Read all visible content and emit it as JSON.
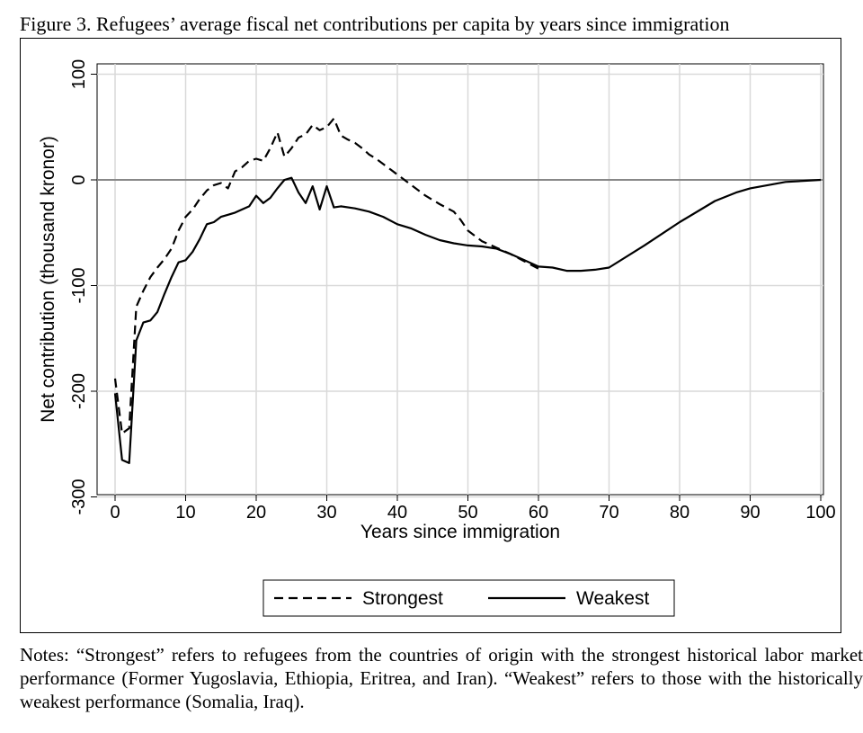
{
  "figure": {
    "caption": "Figure 3. Refugees’ average fiscal net contributions per capita by years since immigration",
    "notes": "Notes: “Strongest” refers to refugees from the countries of origin with the strongest historical labor market performance (Former Yugoslavia, Ethiopia, Eritrea, and Iran). “Weakest” refers to those with the historically weakest performance (Somalia, Iraq)."
  },
  "chart_data": {
    "type": "line",
    "xlabel": "Years since immigration",
    "ylabel": "Net contribution (thousand kronor)",
    "xlim": [
      0,
      100
    ],
    "ylim": [
      -300,
      100
    ],
    "xticks": [
      0,
      10,
      20,
      30,
      40,
      50,
      60,
      70,
      80,
      90,
      100
    ],
    "yticks": [
      -300,
      -200,
      -100,
      0,
      100
    ],
    "grid": true,
    "legend_position": "bottom",
    "reference_line_y": 0,
    "colors": {
      "line": "#000000",
      "grid": "#d9d9d9",
      "zero_line": "#888888"
    },
    "series": [
      {
        "name": "Strongest",
        "style": "dashed",
        "points": [
          [
            0,
            -188
          ],
          [
            1,
            -240
          ],
          [
            2,
            -235
          ],
          [
            3,
            -120
          ],
          [
            4,
            -105
          ],
          [
            5,
            -92
          ],
          [
            6,
            -83
          ],
          [
            7,
            -75
          ],
          [
            8,
            -65
          ],
          [
            9,
            -48
          ],
          [
            10,
            -35
          ],
          [
            11,
            -28
          ],
          [
            12,
            -18
          ],
          [
            13,
            -10
          ],
          [
            14,
            -5
          ],
          [
            15,
            -3
          ],
          [
            16,
            -8
          ],
          [
            17,
            8
          ],
          [
            18,
            12
          ],
          [
            19,
            18
          ],
          [
            20,
            20
          ],
          [
            21,
            18
          ],
          [
            22,
            30
          ],
          [
            23,
            45
          ],
          [
            24,
            22
          ],
          [
            25,
            30
          ],
          [
            26,
            40
          ],
          [
            27,
            43
          ],
          [
            28,
            52
          ],
          [
            29,
            47
          ],
          [
            30,
            50
          ],
          [
            31,
            58
          ],
          [
            32,
            42
          ],
          [
            33,
            38
          ],
          [
            34,
            35
          ],
          [
            35,
            30
          ],
          [
            36,
            24
          ],
          [
            37,
            20
          ],
          [
            38,
            15
          ],
          [
            39,
            10
          ],
          [
            40,
            5
          ],
          [
            42,
            -5
          ],
          [
            44,
            -15
          ],
          [
            46,
            -23
          ],
          [
            48,
            -30
          ],
          [
            49,
            -38
          ],
          [
            50,
            -48
          ],
          [
            52,
            -58
          ],
          [
            54,
            -64
          ],
          [
            56,
            -70
          ],
          [
            58,
            -77
          ],
          [
            60,
            -84
          ]
        ]
      },
      {
        "name": "Weakest",
        "style": "solid",
        "points": [
          [
            0,
            -202
          ],
          [
            1,
            -265
          ],
          [
            2,
            -268
          ],
          [
            3,
            -152
          ],
          [
            4,
            -135
          ],
          [
            5,
            -133
          ],
          [
            6,
            -125
          ],
          [
            7,
            -108
          ],
          [
            8,
            -92
          ],
          [
            9,
            -78
          ],
          [
            10,
            -76
          ],
          [
            11,
            -68
          ],
          [
            12,
            -56
          ],
          [
            13,
            -42
          ],
          [
            14,
            -40
          ],
          [
            15,
            -35
          ],
          [
            16,
            -33
          ],
          [
            17,
            -31
          ],
          [
            18,
            -28
          ],
          [
            19,
            -25
          ],
          [
            20,
            -15
          ],
          [
            21,
            -22
          ],
          [
            22,
            -17
          ],
          [
            23,
            -8
          ],
          [
            24,
            0
          ],
          [
            25,
            2
          ],
          [
            26,
            -12
          ],
          [
            27,
            -22
          ],
          [
            28,
            -6
          ],
          [
            29,
            -28
          ],
          [
            30,
            -6
          ],
          [
            31,
            -26
          ],
          [
            32,
            -25
          ],
          [
            34,
            -27
          ],
          [
            36,
            -30
          ],
          [
            38,
            -35
          ],
          [
            40,
            -42
          ],
          [
            42,
            -46
          ],
          [
            44,
            -52
          ],
          [
            46,
            -57
          ],
          [
            48,
            -60
          ],
          [
            50,
            -62
          ],
          [
            52,
            -63
          ],
          [
            54,
            -65
          ],
          [
            56,
            -70
          ],
          [
            58,
            -76
          ],
          [
            60,
            -82
          ],
          [
            62,
            -83
          ],
          [
            64,
            -86
          ],
          [
            66,
            -86
          ],
          [
            68,
            -85
          ],
          [
            70,
            -83
          ],
          [
            75,
            -62
          ],
          [
            80,
            -40
          ],
          [
            85,
            -20
          ],
          [
            88,
            -12
          ],
          [
            90,
            -8
          ],
          [
            95,
            -2
          ],
          [
            100,
            0
          ]
        ]
      }
    ]
  }
}
